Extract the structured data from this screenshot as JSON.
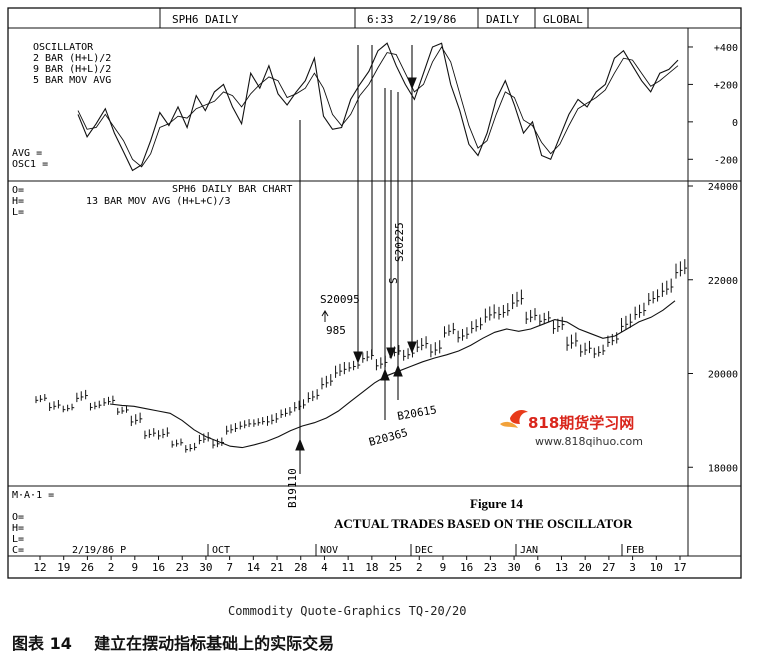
{
  "header": {
    "symbol": "SPH6 DAILY",
    "time": "6:33",
    "date": "2/19/86",
    "period": "DAILY",
    "mode": "GLOBAL"
  },
  "oscillator_panel": {
    "legend": [
      "OSCILLATOR",
      "2 BAR  (H+L)/2",
      "9 BAR  (H+L)/2",
      "5 BAR MOV AVG"
    ],
    "readouts": [
      "AVG =",
      "OSC1 ="
    ]
  },
  "price_panel": {
    "title": "SPH6 DAILY BAR CHART",
    "subtitle": "13 BAR MOV AVG  (H+L+C)/3",
    "readouts": [
      "O=",
      "H=",
      "L="
    ]
  },
  "bottom_panel": {
    "ma_label": "M·A·1 =",
    "readouts": [
      "O=",
      "H=",
      "L=",
      "C="
    ],
    "start_label": "2/19/86 P"
  },
  "figure": {
    "title": "Figure 14",
    "caption": "ACTUAL TRADES BASED ON THE OSCILLATOR"
  },
  "annotations": {
    "buy1": "B19110",
    "sell1": "S20095",
    "profit": "985",
    "buy2": "B20365",
    "buy3": "B20615",
    "sell2": "S20225",
    "sell3": "S"
  },
  "watermark": {
    "brand": "818期货学习网",
    "url": "www.818qihuo.com"
  },
  "footer": {
    "credit": "Commodity Quote-Graphics   TQ-20/20",
    "caption_cn": "图表 14    建立在摆动指标基础上的实际交易"
  },
  "chart_data": [
    {
      "type": "line",
      "name": "oscillator",
      "ylim": [
        -300,
        480
      ],
      "yticks": [
        "+400",
        "+200",
        "0",
        "-200"
      ],
      "ytick_values": [
        400,
        200,
        0,
        -200
      ],
      "series": [
        {
          "name": "2 BAR (H+L)/2 - 9 BAR (H+L)/2",
          "values": [
            40,
            -80,
            -10,
            70,
            -60,
            -160,
            -260,
            -230,
            -100,
            50,
            -20,
            80,
            -30,
            140,
            60,
            160,
            200,
            80,
            -10,
            260,
            180,
            300,
            150,
            90,
            160,
            220,
            340,
            30,
            -40,
            -30,
            120,
            200,
            270,
            380,
            420,
            300,
            200,
            120,
            260,
            400,
            420,
            200,
            60,
            -120,
            -180,
            -60,
            120,
            220,
            90,
            -60,
            0,
            -180,
            -200,
            -80,
            40,
            120,
            80,
            160,
            200,
            340,
            380,
            300,
            220,
            160,
            260,
            280,
            330
          ]
        },
        {
          "name": "5 BAR MOV AVG",
          "values": [
            60,
            -40,
            -30,
            40,
            -30,
            -100,
            -200,
            -240,
            -170,
            -30,
            -10,
            30,
            20,
            70,
            90,
            110,
            160,
            140,
            80,
            150,
            200,
            240,
            220,
            130,
            150,
            180,
            260,
            180,
            40,
            -20,
            40,
            140,
            200,
            290,
            370,
            360,
            260,
            160,
            200,
            320,
            400,
            320,
            150,
            -20,
            -140,
            -100,
            40,
            160,
            130,
            10,
            -20,
            -110,
            -170,
            -120,
            -20,
            70,
            100,
            130,
            170,
            260,
            340,
            330,
            260,
            190,
            220,
            260,
            300
          ]
        }
      ]
    },
    {
      "type": "bar",
      "name": "price-bars",
      "ylim": [
        17600,
        24000
      ],
      "yticks": [
        "24000",
        "22000",
        "20000",
        "18000"
      ],
      "ytick_values": [
        24000,
        22000,
        20000,
        18000
      ],
      "x_tick_labels": [
        "12",
        "19",
        "26",
        "2",
        "9",
        "16",
        "23",
        "30",
        "7",
        "14",
        "21",
        "28",
        "4",
        "11",
        "18",
        "25",
        "2",
        "9",
        "16",
        "23",
        "30",
        "6",
        "13",
        "20",
        "27",
        "3",
        "10",
        "17"
      ],
      "month_labels": [
        "OCT",
        "NOV",
        "DEC",
        "JAN",
        "FEB"
      ],
      "ma_values": [
        19350,
        19320,
        19300,
        19250,
        19200,
        19150,
        19000,
        18800,
        18650,
        18550,
        18450,
        18420,
        18480,
        18550,
        18650,
        18780,
        18880,
        18950,
        19050,
        19200,
        19400,
        19600,
        19800,
        19950,
        20050,
        20150,
        20250,
        20330,
        20400,
        20480,
        20600,
        20750,
        20880,
        20950,
        20900,
        20950,
        21050,
        21150,
        21100,
        20950,
        20850,
        20750,
        20800,
        20950,
        21100,
        21200,
        21350,
        21550
      ],
      "close_values": [
        19450,
        19300,
        19250,
        19500,
        19300,
        19400,
        19200,
        19000,
        18700,
        18700,
        18500,
        18400,
        18600,
        18500,
        18800,
        18900,
        18950,
        19000,
        19150,
        19300,
        19500,
        19800,
        20050,
        20150,
        20350,
        20200,
        20450,
        20400,
        20600,
        20500,
        20900,
        20800,
        21000,
        21250,
        21300,
        21550,
        21200,
        21150,
        21000,
        20650,
        20500,
        20450,
        20700,
        21050,
        21300,
        21600,
        21800,
        22200
      ],
      "range_values": [
        150,
        180,
        140,
        200,
        160,
        170,
        150,
        220,
        180,
        200,
        150,
        160,
        200,
        180,
        190,
        170,
        160,
        210,
        180,
        200,
        220,
        250,
        260,
        200,
        220,
        240,
        210,
        230,
        260,
        280,
        240,
        250,
        260,
        300,
        270,
        320,
        260,
        240,
        280,
        300,
        260,
        220,
        240,
        300,
        280,
        260,
        300,
        320
      ]
    }
  ]
}
